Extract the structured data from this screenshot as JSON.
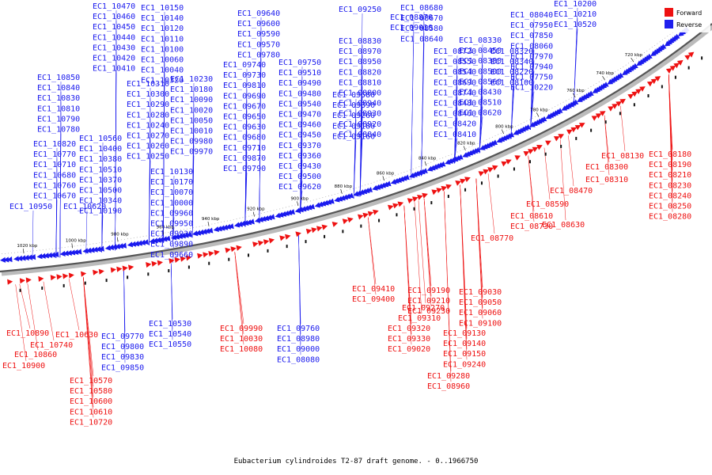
{
  "caption": "Eubacterium cylindroides T2-87 draft genome. - 0..1966750",
  "legend": {
    "items": [
      {
        "label": "Forward",
        "color": "#ee1111"
      },
      {
        "label": "Reverse",
        "color": "#2020ee"
      }
    ]
  },
  "colors": {
    "forward": "#ee1111",
    "reverse": "#1a1aee",
    "backbone": "#555555",
    "shadow": "#bbbbbb"
  },
  "ticks": [
    "1020 kbp",
    "1000 kbp",
    "980 kbp",
    "960 kbp",
    "940 kbp",
    "920 kbp",
    "900 kbp",
    "880 kbp",
    "860 kbp",
    "840 kbp",
    "820 kbp",
    "800 kbp",
    "780 kbp",
    "760 kbp",
    "740 kbp",
    "720 kbp"
  ],
  "reverse_labels": [
    "EC1_10470",
    "EC1_10460",
    "EC1_10450",
    "EC1_10440",
    "EC1_10430",
    "EC1_10420",
    "EC1_10410",
    "EC1_10850",
    "EC1_10840",
    "EC1_10830",
    "EC1_10810",
    "EC1_10790",
    "EC1_10780",
    "EC1_10820",
    "EC1_10770",
    "EC1_10710",
    "EC1_10680",
    "EC1_10760",
    "EC1_10670",
    "EC1_10950",
    "EC1_10620",
    "EC1_10560",
    "EC1_10400",
    "EC1_10380",
    "EC1_10510",
    "EC1_10370",
    "EC1_10500",
    "EC1_10340",
    "EC1_10190",
    "EC1_10150",
    "EC1_10140",
    "EC1_10120",
    "EC1_10110",
    "EC1_10100",
    "EC1_10060",
    "EC1_10040",
    "EC1_10320",
    "EC1_10310",
    "EC1_10300",
    "EC1_10290",
    "EC1_10280",
    "EC1_10240",
    "EC1_10270",
    "EC1_10260",
    "EC1_10250",
    "EC1_10230",
    "EC1_10180",
    "EC1_10090",
    "EC1_10020",
    "EC1_10050",
    "EC1_10010",
    "EC1_09980",
    "EC1_09970",
    "EC1_10130",
    "EC1_10170",
    "EC1_10070",
    "EC1_10000",
    "EC1_09960",
    "EC1_09950",
    "EC1_09930",
    "EC1_09890",
    "EC1_09660",
    "EC1_09640",
    "EC1_09600",
    "EC1_09590",
    "EC1_09570",
    "EC1_09780",
    "EC1_09740",
    "EC1_09730",
    "EC1_09810",
    "EC1_09690",
    "EC1_09670",
    "EC1_09650",
    "EC1_09630",
    "EC1_09680",
    "EC1_09710",
    "EC1_09870",
    "EC1_09790",
    "EC1_09750",
    "EC1_09510",
    "EC1_09490",
    "EC1_09480",
    "EC1_09540",
    "EC1_09470",
    "EC1_09460",
    "EC1_09450",
    "EC1_09370",
    "EC1_09360",
    "EC1_09430",
    "EC1_09500",
    "EC1_09620",
    "EC1_09580",
    "EC1_09390",
    "EC1_09260",
    "EC1_09180",
    "EC1_09160",
    "EC1_09250",
    "EC1_08830",
    "EC1_08970",
    "EC1_08950",
    "EC1_08820",
    "EC1_08810",
    "EC1_08800",
    "EC1_08940",
    "EC1_08930",
    "EC1_08920",
    "EC1_08840",
    "EC1_08870",
    "EC1_09010",
    "EC1_08680",
    "EC1_08670",
    "EC1_08580",
    "EC1_08640",
    "EC1_08720",
    "EC1_08550",
    "EC1_08540",
    "EC1_08690",
    "EC1_08740",
    "EC1_08480",
    "EC1_08460",
    "EC1_08420",
    "EC1_08410",
    "EC1_08330",
    "EC1_08450",
    "EC1_08380",
    "EC1_08500",
    "EC1_08560",
    "EC1_08430",
    "EC1_08510",
    "EC1_08620",
    "EC1_08320",
    "EC1_08340",
    "EC1_08220",
    "EC1_08100",
    "EC1_08040",
    "EC1_07950",
    "EC1_07850",
    "EC1_08060",
    "EC1_07970",
    "EC1_07940",
    "EC1_07750",
    "EC1_10220",
    "EC1_10200",
    "EC1_10210",
    "EC1_10520",
    "EC1_10530",
    "EC1_10540",
    "EC1_10550",
    "EC1_09770",
    "EC1_09800",
    "EC1_09830",
    "EC1_09850",
    "EC1_09760",
    "EC1_08980",
    "EC1_09000",
    "EC1_08080"
  ],
  "forward_labels": [
    "EC1_10890",
    "EC1_10740",
    "EC1_10860",
    "EC1_10900",
    "EC1_10630",
    "EC1_10570",
    "EC1_10580",
    "EC1_10600",
    "EC1_10610",
    "EC1_10720",
    "EC1_09990",
    "EC1_10030",
    "EC1_10080",
    "EC1_09410",
    "EC1_09400",
    "EC1_09190",
    "EC1_09210",
    "EC1_09230",
    "EC1_09270",
    "EC1_09310",
    "EC1_09320",
    "EC1_09330",
    "EC1_09020",
    "EC1_09030",
    "EC1_09050",
    "EC1_09060",
    "EC1_09100",
    "EC1_09130",
    "EC1_09140",
    "EC1_09150",
    "EC1_09240",
    "EC1_09280",
    "EC1_08960",
    "EC1_08770",
    "EC1_08730",
    "EC1_08610",
    "EC1_08630",
    "EC1_08590",
    "EC1_08470",
    "EC1_08310",
    "EC1_08300",
    "EC1_08130",
    "EC1_08180",
    "EC1_08190",
    "EC1_08210",
    "EC1_08230",
    "EC1_08240",
    "EC1_08250",
    "EC1_08280"
  ]
}
